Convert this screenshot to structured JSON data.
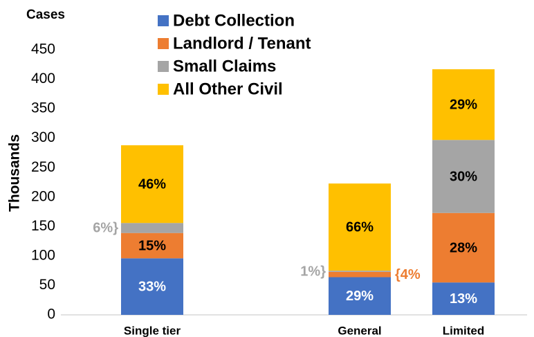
{
  "chart_data": {
    "type": "stacked_bar",
    "title": "Cases",
    "y_label": "Thousands",
    "categories": [
      "Single tier",
      null,
      "General",
      "Limited"
    ],
    "series": [
      {
        "name": "Debt Collection",
        "color": "#4472c4",
        "values": [
          96,
          null,
          64,
          55
        ],
        "value_labels": [
          "33%",
          null,
          "29%",
          "13%"
        ]
      },
      {
        "name": "Landlord / Tenant",
        "color": "#ed7d31",
        "values": [
          43,
          null,
          9,
          118
        ],
        "value_labels": [
          "15%",
          null,
          "{4%",
          "28%"
        ]
      },
      {
        "name": "Small Claims",
        "color": "#a5a5a5",
        "values": [
          17,
          null,
          2,
          124
        ],
        "value_labels": [
          "6%}",
          null,
          "1%}",
          "30%"
        ]
      },
      {
        "name": "All Other Civil",
        "color": "#ffc000",
        "values": [
          132,
          null,
          148,
          120
        ],
        "value_labels": [
          "46%",
          null,
          "66%",
          "29%"
        ]
      }
    ],
    "ylim": [
      0,
      450
    ],
    "yticks": [
      0,
      50,
      100,
      150,
      200,
      250,
      300,
      350,
      400,
      450
    ],
    "grid": false,
    "legend": "top"
  }
}
